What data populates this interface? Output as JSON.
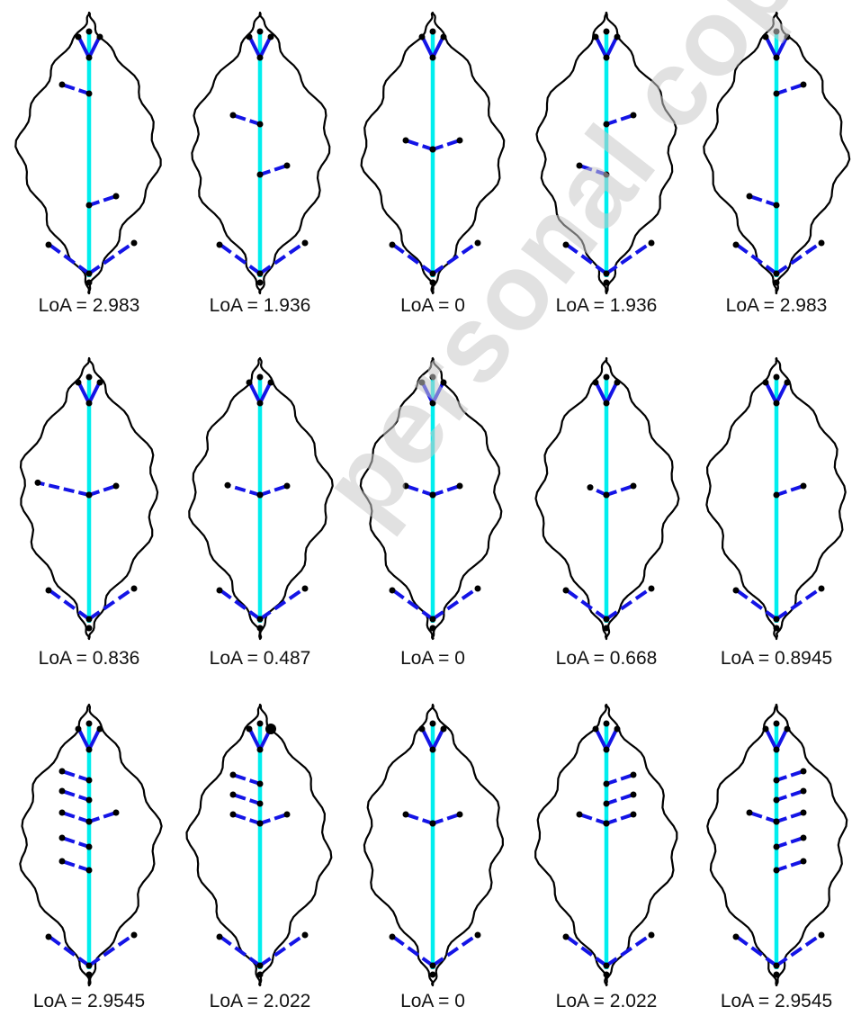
{
  "watermark": {
    "text": "personal copy"
  },
  "colors": {
    "outline": "#000000",
    "main_vein": "#00eeee",
    "side_vein": "#1414e6",
    "node": "#000000"
  },
  "panels": [
    {
      "caption": "LoA = 2.983",
      "left": [
        {
          "y": 0.18,
          "s": 1
        }
      ],
      "right": [
        {
          "y": 0.8,
          "s": 1
        }
      ],
      "base": {
        "l": 1,
        "r": 1
      },
      "big_top": false
    },
    {
      "caption": "LoA = 1.936",
      "left": [
        {
          "y": 0.35,
          "s": 1
        }
      ],
      "right": [
        {
          "y": 0.63,
          "s": 1
        }
      ],
      "base": {
        "l": 1,
        "r": 1
      },
      "big_top": false
    },
    {
      "caption": "LoA = 0",
      "left": [
        {
          "y": 0.49,
          "s": 1
        }
      ],
      "right": [
        {
          "y": 0.49,
          "s": 1
        }
      ],
      "base": {
        "l": 1,
        "r": 1
      },
      "big_top": false
    },
    {
      "caption": "LoA = 1.936",
      "left": [
        {
          "y": 0.63,
          "s": 1
        }
      ],
      "right": [
        {
          "y": 0.35,
          "s": 1
        }
      ],
      "base": {
        "l": 1,
        "r": 1
      },
      "big_top": false
    },
    {
      "caption": "LoA = 2.983",
      "left": [
        {
          "y": 0.8,
          "s": 1
        }
      ],
      "right": [
        {
          "y": 0.18,
          "s": 1
        }
      ],
      "base": {
        "l": 1,
        "r": 1
      },
      "big_top": false
    },
    {
      "caption": "LoA = 0.836",
      "left": [
        {
          "y": 0.49,
          "s": 1.9
        }
      ],
      "right": [
        {
          "y": 0.49,
          "s": 1
        }
      ],
      "base": {
        "l": 1,
        "r": 1
      },
      "big_top": false
    },
    {
      "caption": "LoA = 0.487",
      "left": [
        {
          "y": 0.49,
          "s": 1.2
        }
      ],
      "right": [
        {
          "y": 0.49,
          "s": 1
        }
      ],
      "base": {
        "l": 1,
        "r": 1
      },
      "big_top": false
    },
    {
      "caption": "LoA = 0",
      "left": [
        {
          "y": 0.49,
          "s": 1
        }
      ],
      "right": [
        {
          "y": 0.49,
          "s": 1
        }
      ],
      "base": {
        "l": 1,
        "r": 1
      },
      "big_top": false
    },
    {
      "caption": "LoA = 0.668",
      "left": [
        {
          "y": 0.49,
          "s": 0.6
        }
      ],
      "right": [
        {
          "y": 0.49,
          "s": 1
        }
      ],
      "base": {
        "l": 1,
        "r": 1
      },
      "big_top": false
    },
    {
      "caption": "LoA = 0.8945",
      "left": [],
      "right": [
        {
          "y": 0.49,
          "s": 1
        }
      ],
      "base": {
        "l": 1,
        "r": 1
      },
      "big_top": false
    },
    {
      "caption": "LoA = 2.9545",
      "left": [
        {
          "y": 0.15,
          "s": 1
        },
        {
          "y": 0.26,
          "s": 1
        },
        {
          "y": 0.38,
          "s": 1
        },
        {
          "y": 0.52,
          "s": 1
        },
        {
          "y": 0.65,
          "s": 1
        }
      ],
      "right": [
        {
          "y": 0.38,
          "s": 1
        }
      ],
      "base": {
        "l": 1,
        "r": 1
      },
      "big_top": false
    },
    {
      "caption": "LoA = 2.022",
      "left": [
        {
          "y": 0.17,
          "s": 1
        },
        {
          "y": 0.28,
          "s": 1
        },
        {
          "y": 0.39,
          "s": 1
        }
      ],
      "right": [
        {
          "y": 0.39,
          "s": 1
        }
      ],
      "base": {
        "l": 1,
        "r": 1
      },
      "big_top": true
    },
    {
      "caption": "LoA = 0",
      "left": [
        {
          "y": 0.39,
          "s": 1
        }
      ],
      "right": [
        {
          "y": 0.39,
          "s": 1
        }
      ],
      "base": {
        "l": 1,
        "r": 1
      },
      "big_top": false
    },
    {
      "caption": "LoA = 2.022",
      "left": [
        {
          "y": 0.39,
          "s": 1
        }
      ],
      "right": [
        {
          "y": 0.17,
          "s": 1
        },
        {
          "y": 0.28,
          "s": 1
        },
        {
          "y": 0.39,
          "s": 1
        }
      ],
      "base": {
        "l": 1,
        "r": 1
      },
      "big_top": false
    },
    {
      "caption": "LoA = 2.9545",
      "left": [
        {
          "y": 0.38,
          "s": 1
        }
      ],
      "right": [
        {
          "y": 0.15,
          "s": 1
        },
        {
          "y": 0.26,
          "s": 1
        },
        {
          "y": 0.38,
          "s": 1
        },
        {
          "y": 0.52,
          "s": 1
        },
        {
          "y": 0.65,
          "s": 1
        }
      ],
      "base": {
        "l": 1,
        "r": 1
      },
      "big_top": false
    }
  ]
}
